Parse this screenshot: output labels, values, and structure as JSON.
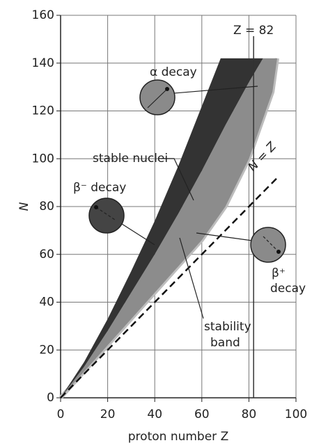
{
  "chart_data": {
    "type": "band",
    "xlabel": "proton number Z",
    "ylabel": "N",
    "xlim": [
      0,
      100
    ],
    "ylim": [
      0,
      160
    ],
    "xticks": [
      0,
      20,
      40,
      60,
      80,
      100
    ],
    "yticks": [
      0,
      20,
      40,
      60,
      80,
      100,
      120,
      140,
      160
    ],
    "grid": true,
    "series": [
      {
        "color": "#333333",
        "x": [
          0,
          10,
          20,
          30,
          40,
          50,
          60,
          68
        ],
        "values": [
          0,
          15,
          33,
          53,
          74,
          97,
          122,
          142
        ]
      },
      {
        "color": "#8c8c8c",
        "x": [
          0,
          10,
          20,
          30,
          40,
          50,
          60,
          70,
          80,
          86
        ],
        "values": [
          0,
          13,
          28,
          44,
          60,
          77,
          95,
          114,
          132,
          142
        ]
      },
      {
        "color": "#bdbdbd",
        "x": [
          0,
          10,
          20,
          30,
          40,
          50,
          60,
          70,
          80,
          90,
          92
        ],
        "values": [
          0,
          11,
          22,
          33,
          44,
          55,
          66,
          80,
          100,
          128,
          142
        ]
      }
    ],
    "diagonal": {
      "label": "N = Z",
      "x": [
        0,
        92
      ],
      "values": [
        0,
        92
      ]
    },
    "vline": {
      "label": "Z = 82",
      "value": 82
    },
    "annotations": {
      "alpha": "α decay",
      "beta_minus": "β⁻ decay",
      "beta_plus": [
        "β⁺",
        "decay"
      ],
      "stable": "stable nuclei",
      "band": [
        "stability",
        "band"
      ]
    }
  }
}
